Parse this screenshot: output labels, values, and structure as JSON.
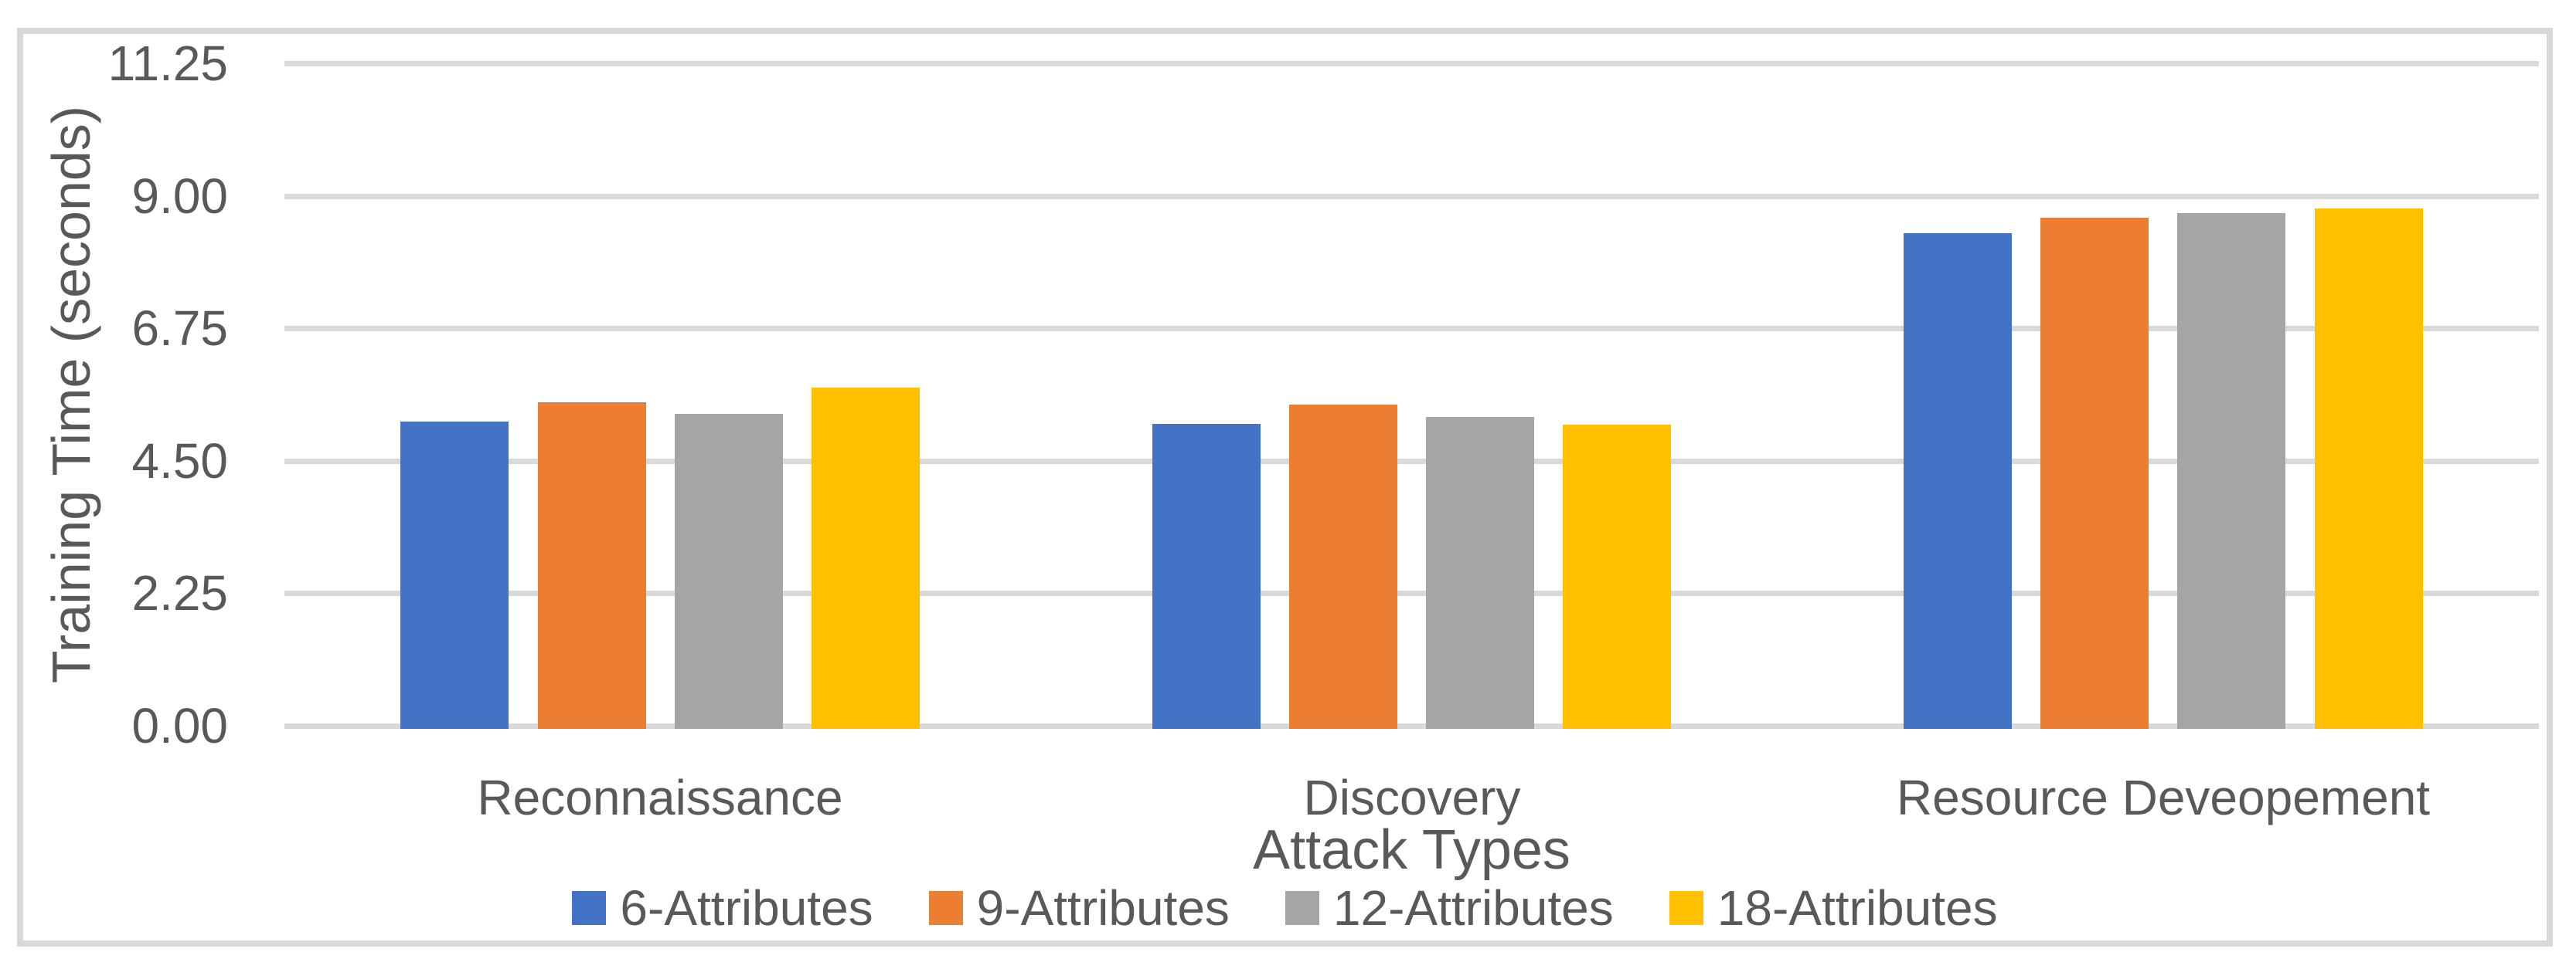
{
  "chart_data": {
    "type": "bar",
    "title": "",
    "categories": [
      "Reconnaissance",
      "Discovery",
      "Resource Deveopement"
    ],
    "series": [
      {
        "name": "6-Attributes",
        "color": "#4472C4",
        "values": [
          5.17,
          5.13,
          8.36
        ]
      },
      {
        "name": "9-Attributes",
        "color": "#ED7D31",
        "values": [
          5.49,
          5.45,
          8.63
        ]
      },
      {
        "name": "12-Attributes",
        "color": "#A5A5A5",
        "values": [
          5.3,
          5.25,
          8.7
        ]
      },
      {
        "name": "18-Attributes",
        "color": "#FFC000",
        "values": [
          5.74,
          5.12,
          8.78
        ]
      }
    ],
    "xlabel": "Attack Types",
    "ylabel": "Training Time (seconds)",
    "ylim": [
      0,
      11.25
    ],
    "ytick_step": 2.25,
    "ytick_labels": [
      "0.00",
      "2.25",
      "4.50",
      "6.75",
      "9.00",
      "11.25"
    ],
    "grid": true,
    "legend_position": "bottom",
    "colors": {
      "gridline": "#D9D9D9",
      "frame_border": "#D9D9D9",
      "text": "#595959",
      "background": "#FFFFFF"
    }
  }
}
